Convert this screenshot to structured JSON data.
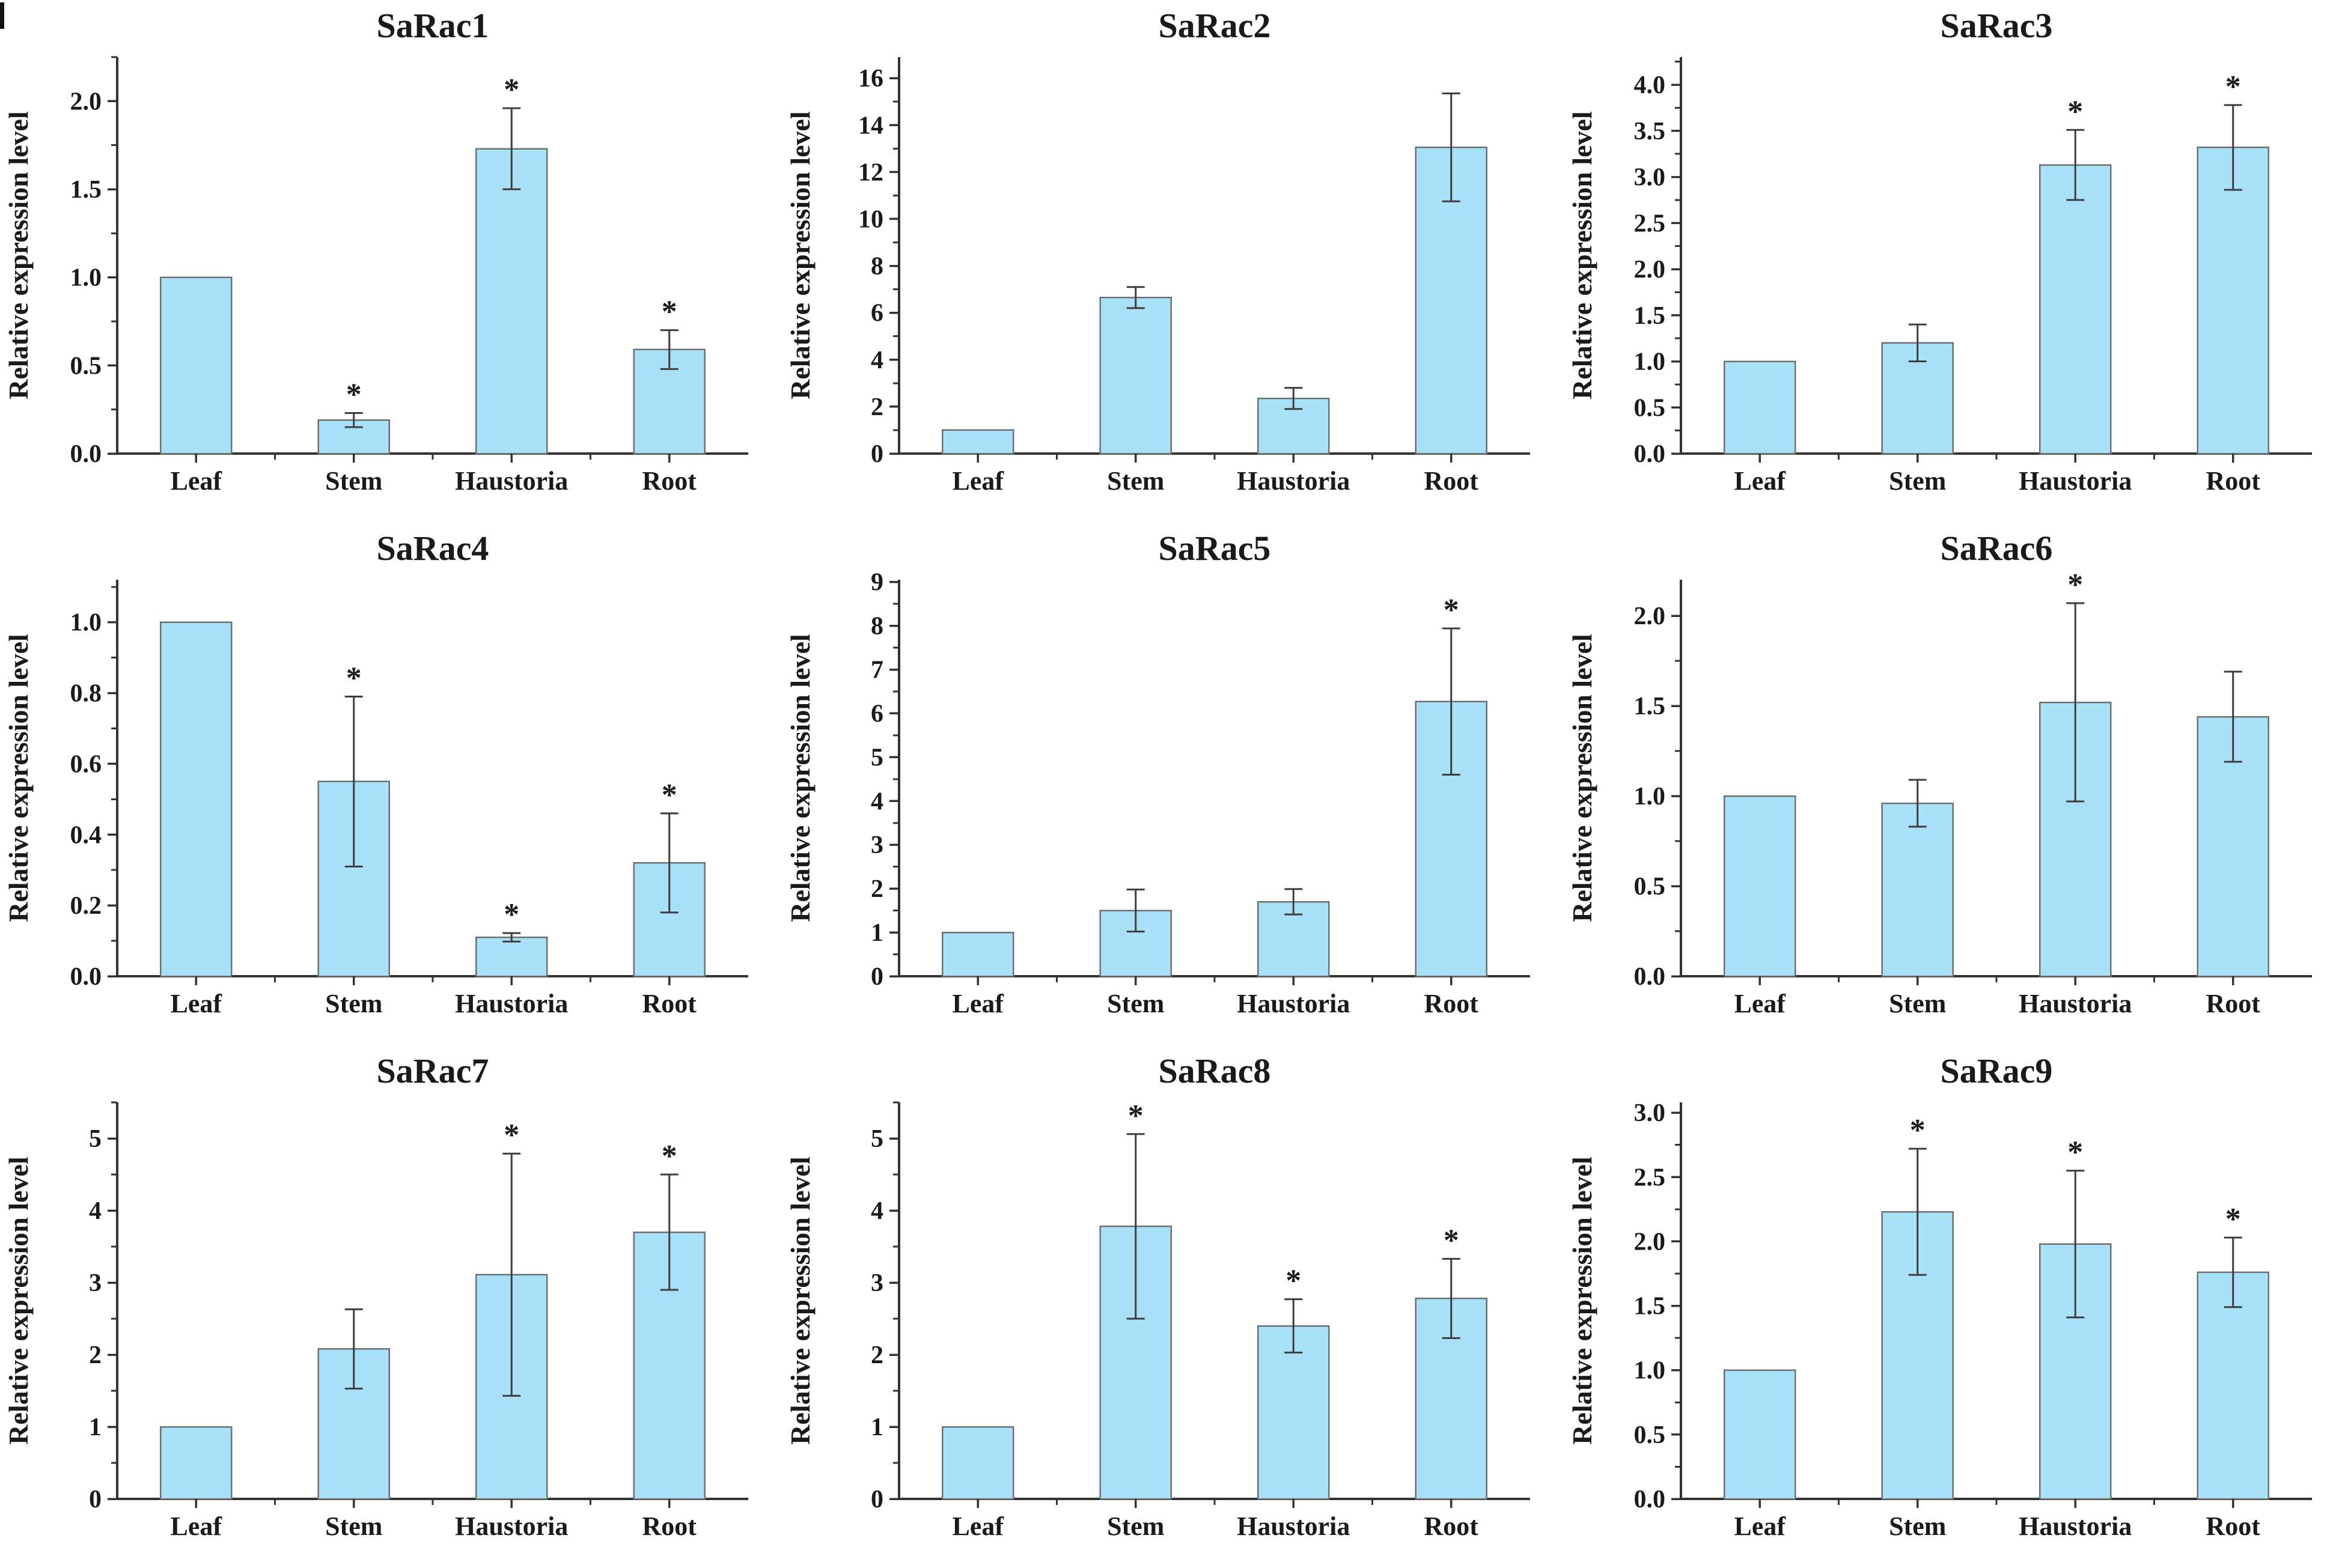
{
  "figure": {
    "background": "#ffffff",
    "bar_fill": "#a9e2f8",
    "bar_stroke": "#6f6f6f",
    "axis_color": "#333333",
    "error_color": "#3d3d3d",
    "text_color": "#1a1a1a",
    "significance_marker": "*",
    "shared_ylabel": "Relative expression level",
    "shared_categories": [
      "Leaf",
      "Stem",
      "Haustoria",
      "Root"
    ]
  },
  "chart_data": [
    {
      "type": "bar",
      "title": "SaRac1",
      "xlabel": "",
      "ylabel": "Relative expression level",
      "categories": [
        "Leaf",
        "Stem",
        "Haustoria",
        "Root"
      ],
      "values": [
        1.0,
        0.19,
        1.73,
        0.59
      ],
      "errors": [
        0,
        0.04,
        0.23,
        0.11
      ],
      "significant": [
        false,
        true,
        true,
        true
      ],
      "ylim": [
        0,
        2.25
      ],
      "yticks": {
        "max": 2.0,
        "step": 0.5,
        "decimals": 1
      },
      "grid": false,
      "legend": "none"
    },
    {
      "type": "bar",
      "title": "SaRac2",
      "xlabel": "",
      "ylabel": "Relative expression level",
      "categories": [
        "Leaf",
        "Stem",
        "Haustoria",
        "Root"
      ],
      "values": [
        1.0,
        6.65,
        2.35,
        13.05
      ],
      "errors": [
        0,
        0.45,
        0.45,
        2.3
      ],
      "significant": [
        false,
        false,
        false,
        false
      ],
      "ylim": [
        0,
        16.9
      ],
      "yticks": {
        "max": 16,
        "step": 2,
        "decimals": 0
      },
      "grid": false,
      "legend": "none"
    },
    {
      "type": "bar",
      "title": "SaRac3",
      "xlabel": "",
      "ylabel": "Relative expression level",
      "categories": [
        "Leaf",
        "Stem",
        "Haustoria",
        "Root"
      ],
      "values": [
        1.0,
        1.2,
        3.13,
        3.32
      ],
      "errors": [
        0,
        0.2,
        0.38,
        0.46
      ],
      "significant": [
        false,
        false,
        true,
        true
      ],
      "ylim": [
        0,
        4.3
      ],
      "yticks": {
        "max": 4.0,
        "step": 0.5,
        "decimals": 1
      },
      "grid": false,
      "legend": "none"
    },
    {
      "type": "bar",
      "title": "SaRac4",
      "xlabel": "",
      "ylabel": "Relative expression level",
      "categories": [
        "Leaf",
        "Stem",
        "Haustoria",
        "Root"
      ],
      "values": [
        1.0,
        0.55,
        0.11,
        0.32
      ],
      "errors": [
        0,
        0.24,
        0.012,
        0.14
      ],
      "significant": [
        false,
        true,
        true,
        true
      ],
      "ylim": [
        0,
        1.12
      ],
      "yticks": {
        "max": 1.0,
        "step": 0.2,
        "decimals": 1
      },
      "grid": false,
      "legend": "none"
    },
    {
      "type": "bar",
      "title": "SaRac5",
      "xlabel": "",
      "ylabel": "Relative expression level",
      "categories": [
        "Leaf",
        "Stem",
        "Haustoria",
        "Root"
      ],
      "values": [
        1.0,
        1.5,
        1.7,
        6.27
      ],
      "errors": [
        0,
        0.48,
        0.29,
        1.67
      ],
      "significant": [
        false,
        false,
        false,
        true
      ],
      "ylim": [
        0,
        9.05
      ],
      "yticks": {
        "max": 9,
        "step": 1,
        "decimals": 0
      },
      "grid": false,
      "legend": "none"
    },
    {
      "type": "bar",
      "title": "SaRac6",
      "xlabel": "",
      "ylabel": "Relative expression level",
      "categories": [
        "Leaf",
        "Stem",
        "Haustoria",
        "Root"
      ],
      "values": [
        1.0,
        0.96,
        1.52,
        1.44
      ],
      "errors": [
        0,
        0.13,
        0.55,
        0.25
      ],
      "significant": [
        false,
        false,
        true,
        false
      ],
      "ylim": [
        0,
        2.2
      ],
      "yticks": {
        "max": 2.0,
        "step": 0.5,
        "decimals": 1
      },
      "grid": false,
      "legend": "none"
    },
    {
      "type": "bar",
      "title": "SaRac7",
      "xlabel": "",
      "ylabel": "Relative expression level",
      "categories": [
        "Leaf",
        "Stem",
        "Haustoria",
        "Root"
      ],
      "values": [
        1.0,
        2.08,
        3.11,
        3.7
      ],
      "errors": [
        0,
        0.55,
        1.68,
        0.8
      ],
      "significant": [
        false,
        false,
        true,
        true
      ],
      "ylim": [
        0,
        5.5
      ],
      "yticks": {
        "max": 5,
        "step": 1,
        "decimals": 0
      },
      "grid": false,
      "legend": "none"
    },
    {
      "type": "bar",
      "title": "SaRac8",
      "xlabel": "",
      "ylabel": "Relative expression level",
      "categories": [
        "Leaf",
        "Stem",
        "Haustoria",
        "Root"
      ],
      "values": [
        1.0,
        3.78,
        2.4,
        2.78
      ],
      "errors": [
        0,
        1.28,
        0.37,
        0.55
      ],
      "significant": [
        false,
        true,
        true,
        true
      ],
      "ylim": [
        0,
        5.5
      ],
      "yticks": {
        "max": 5,
        "step": 1,
        "decimals": 0
      },
      "grid": false,
      "legend": "none"
    },
    {
      "type": "bar",
      "title": "SaRac9",
      "xlabel": "",
      "ylabel": "Relative expression level",
      "categories": [
        "Leaf",
        "Stem",
        "Haustoria",
        "Root"
      ],
      "values": [
        1.0,
        2.23,
        1.98,
        1.76
      ],
      "errors": [
        0,
        0.49,
        0.57,
        0.27
      ],
      "significant": [
        false,
        true,
        true,
        true
      ],
      "ylim": [
        0,
        3.08
      ],
      "yticks": {
        "max": 3.0,
        "step": 0.5,
        "decimals": 1
      },
      "grid": false,
      "legend": "none"
    }
  ]
}
